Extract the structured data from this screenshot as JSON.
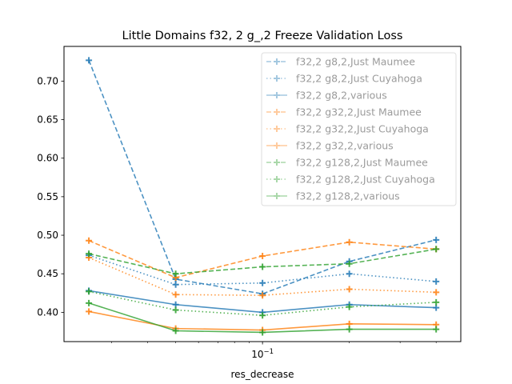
{
  "chart_data": {
    "type": "line",
    "title": "Little Domains f32, 2 g_,2 Freeze Validation Loss",
    "xlabel": "res_decrease",
    "ylabel": "",
    "xscale": "log",
    "x": [
      0.025,
      0.05,
      0.1,
      0.2,
      0.4
    ],
    "xlim": [
      0.0205,
      0.487
    ],
    "ylim": [
      0.362,
      0.745
    ],
    "x_ticks": [
      {
        "value": 0.1,
        "label": "10^-1"
      }
    ],
    "y_ticks": [
      0.4,
      0.45,
      0.5,
      0.55,
      0.6,
      0.65,
      0.7
    ],
    "grid": false,
    "legend_position": "top-right",
    "series": [
      {
        "name": "f32,2 g8,2,Just Maumee",
        "color": "#1f77b4",
        "dash": "dashed",
        "values": [
          0.727,
          0.443,
          0.424,
          0.466,
          0.494
        ]
      },
      {
        "name": "f32,2 g8,2,Just Cuyahoga",
        "color": "#1f77b4",
        "dash": "dotted",
        "values": [
          0.474,
          0.436,
          0.438,
          0.45,
          0.44
        ]
      },
      {
        "name": "f32,2 g8,2,various",
        "color": "#1f77b4",
        "dash": "solid",
        "values": [
          0.428,
          0.41,
          0.4,
          0.41,
          0.406
        ]
      },
      {
        "name": "f32,2 g32,2,Just Maumee",
        "color": "#ff7f0e",
        "dash": "dashed",
        "values": [
          0.493,
          0.445,
          0.473,
          0.491,
          0.482
        ]
      },
      {
        "name": "f32,2 g32,2,Just Cuyahoga",
        "color": "#ff7f0e",
        "dash": "dotted",
        "values": [
          0.471,
          0.423,
          0.422,
          0.43,
          0.426
        ]
      },
      {
        "name": "f32,2 g32,2,various",
        "color": "#ff7f0e",
        "dash": "solid",
        "values": [
          0.401,
          0.379,
          0.377,
          0.385,
          0.384
        ]
      },
      {
        "name": "f32,2 g128,2,Just Maumee",
        "color": "#2ca02c",
        "dash": "dashed",
        "values": [
          0.476,
          0.45,
          0.459,
          0.463,
          0.482
        ]
      },
      {
        "name": "f32,2 g128,2,Just Cuyahoga",
        "color": "#2ca02c",
        "dash": "dotted",
        "values": [
          0.427,
          0.403,
          0.396,
          0.407,
          0.413
        ]
      },
      {
        "name": "f32,2 g128,2,various",
        "color": "#2ca02c",
        "dash": "solid",
        "values": [
          0.412,
          0.376,
          0.374,
          0.378,
          0.378
        ]
      }
    ]
  }
}
